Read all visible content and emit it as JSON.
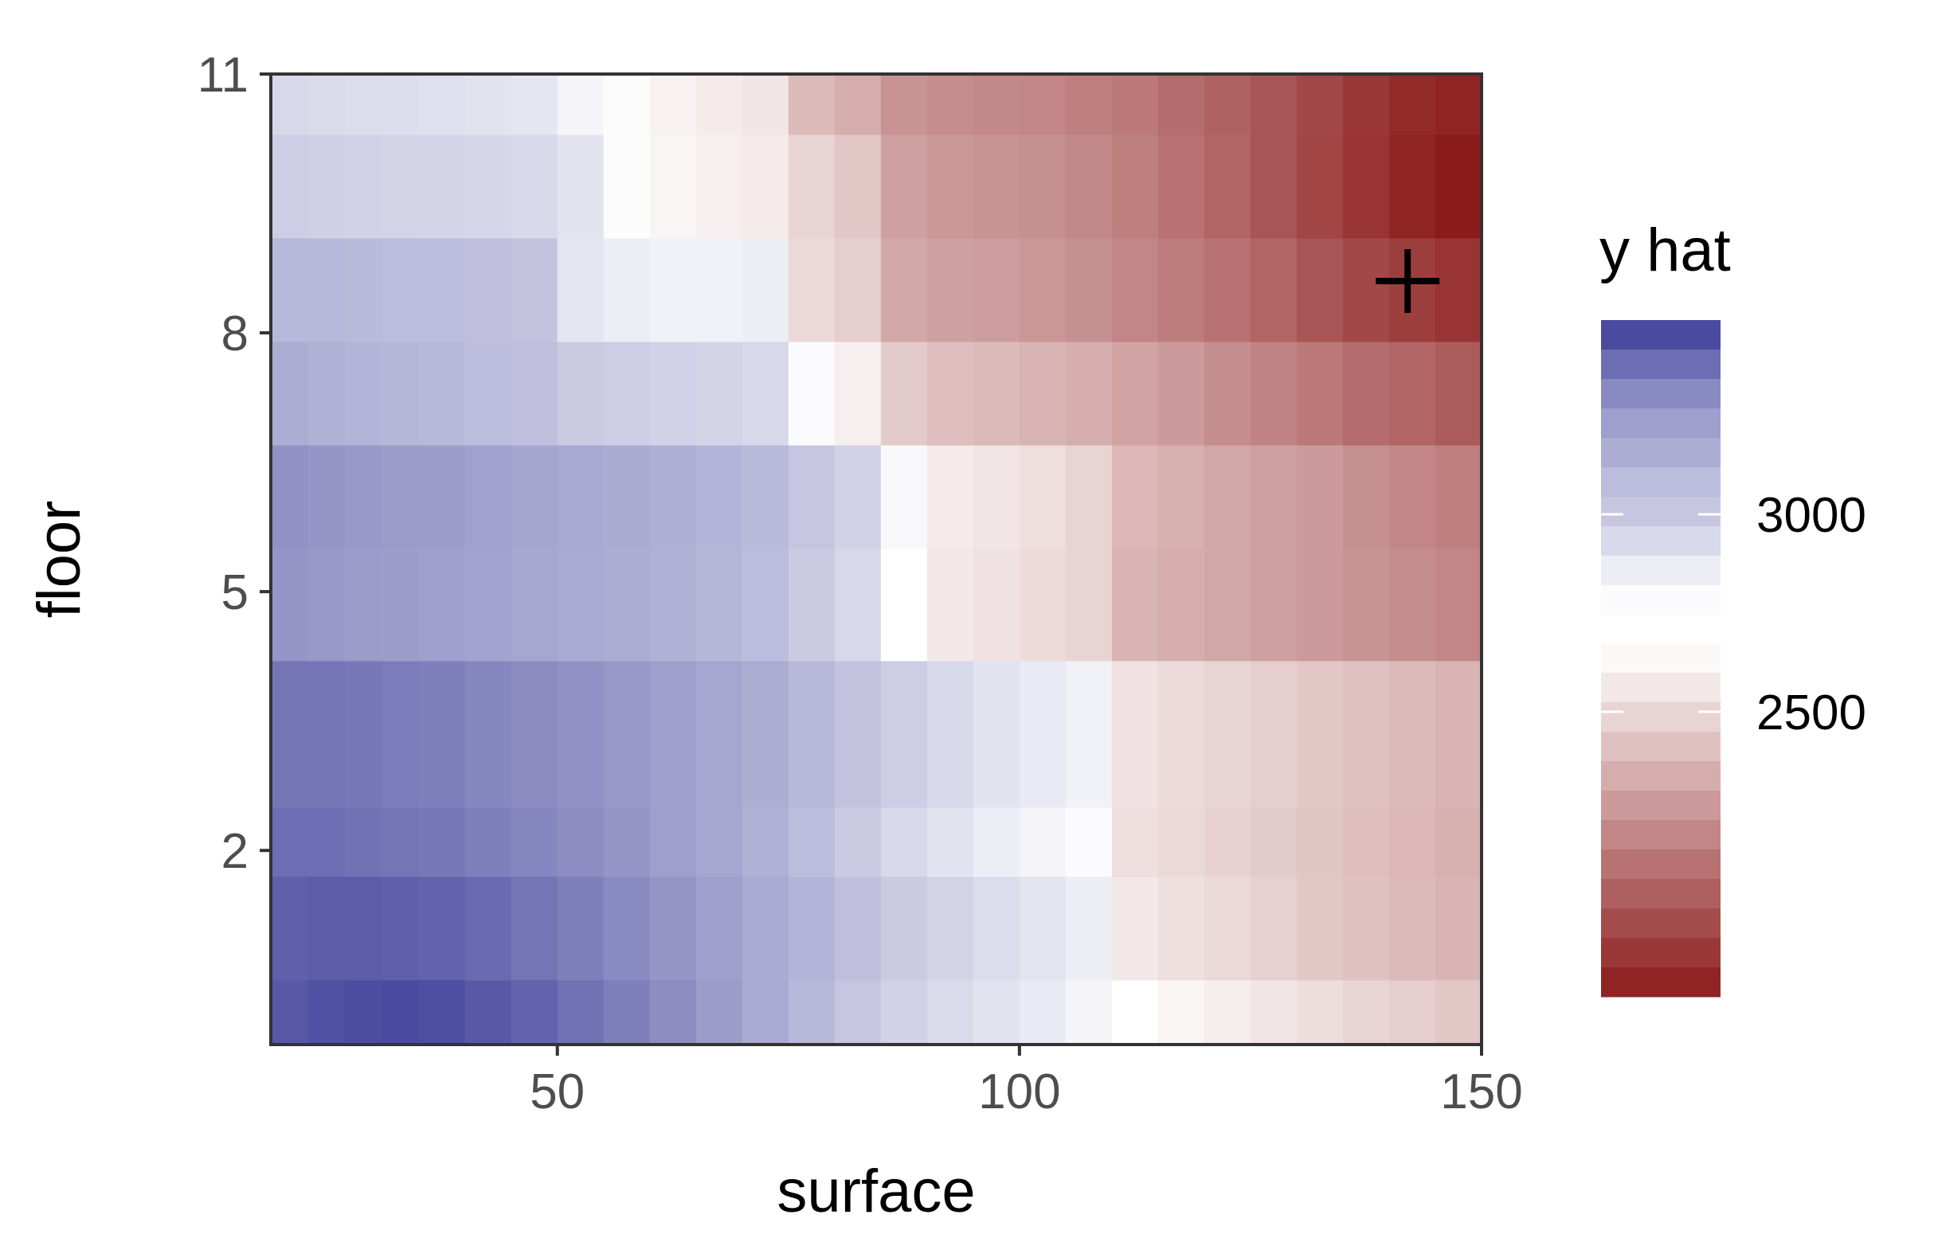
{
  "chart_data": {
    "type": "heatmap",
    "title": "",
    "xlabel": "surface",
    "ylabel": "floor",
    "xlim": [
      19,
      150
    ],
    "ylim": [
      -0.25,
      11
    ],
    "x_ticks": [
      50,
      100,
      150
    ],
    "y_ticks": [
      2,
      5,
      8,
      11
    ],
    "grid": false,
    "x_break_points": [
      19,
      23,
      27,
      31,
      35,
      40,
      45,
      50,
      55,
      60,
      65,
      70,
      75,
      80,
      85,
      90,
      95,
      100,
      105,
      110,
      115,
      120,
      125,
      130,
      135,
      140,
      145,
      150
    ],
    "y_break_points": [
      -0.25,
      0.5,
      1.7,
      2.5,
      4.2,
      5.5,
      6.7,
      7.9,
      9.1,
      10.3,
      11
    ],
    "rows": [
      {
        "y0": -0.25,
        "y1": 0.5,
        "values": [
          3320,
          3340,
          3355,
          3360,
          3350,
          3320,
          3290,
          3250,
          3210,
          3170,
          3130,
          3090,
          3050,
          3010,
          2980,
          2955,
          2930,
          2910,
          2880,
          2850,
          2820,
          2795,
          2770,
          2745,
          2720,
          2700,
          2680
        ]
      },
      {
        "y0": 0.5,
        "y1": 1.7,
        "values": [
          3300,
          3310,
          3310,
          3300,
          3290,
          3270,
          3240,
          3210,
          3180,
          3150,
          3120,
          3090,
          3060,
          3030,
          3000,
          2975,
          2950,
          2925,
          2900,
          2780,
          2755,
          2730,
          2705,
          2680,
          2660,
          2640,
          2620
        ]
      },
      {
        "y0": 1.7,
        "y1": 2.5,
        "values": [
          3260,
          3260,
          3250,
          3240,
          3230,
          3210,
          3190,
          3170,
          3150,
          3120,
          3100,
          3070,
          3040,
          3000,
          2960,
          2930,
          2900,
          2880,
          2860,
          2750,
          2730,
          2710,
          2690,
          2670,
          2650,
          2630,
          2610
        ]
      },
      {
        "y0": 2.5,
        "y1": 4.2,
        "values": [
          3240,
          3240,
          3230,
          3220,
          3210,
          3190,
          3175,
          3160,
          3140,
          3120,
          3100,
          3080,
          3050,
          3020,
          2990,
          2960,
          2930,
          2910,
          2890,
          2760,
          2740,
          2720,
          2700,
          2680,
          2660,
          2640,
          2620
        ]
      },
      {
        "y0": 4.2,
        "y1": 5.5,
        "values": [
          3150,
          3140,
          3130,
          3125,
          3120,
          3110,
          3100,
          3090,
          3080,
          3070,
          3055,
          3040,
          3000,
          2960,
          2850,
          2780,
          2760,
          2740,
          2720,
          2620,
          2600,
          2580,
          2560,
          2540,
          2520,
          2500,
          2480
        ]
      },
      {
        "y0": 5.5,
        "y1": 6.7,
        "values": [
          3160,
          3150,
          3140,
          3130,
          3125,
          3115,
          3105,
          3095,
          3085,
          3075,
          3060,
          3045,
          3010,
          2980,
          2870,
          2790,
          2770,
          2750,
          2720,
          2630,
          2610,
          2580,
          2560,
          2540,
          2510,
          2480,
          2460
        ]
      },
      {
        "y0": 6.7,
        "y1": 7.9,
        "values": [
          3080,
          3070,
          3060,
          3055,
          3050,
          3040,
          3030,
          3000,
          2990,
          2980,
          2970,
          2960,
          2860,
          2800,
          2690,
          2650,
          2640,
          2620,
          2600,
          2570,
          2540,
          2500,
          2470,
          2440,
          2400,
          2380,
          2350
        ]
      },
      {
        "y0": 7.9,
        "y1": 9.1,
        "values": [
          3050,
          3050,
          3045,
          3040,
          3035,
          3030,
          3020,
          2920,
          2900,
          2890,
          2890,
          2900,
          2730,
          2700,
          2580,
          2560,
          2550,
          2530,
          2510,
          2480,
          2450,
          2420,
          2380,
          2330,
          2290,
          2260,
          2230
        ]
      },
      {
        "y0": 9.1,
        "y1": 10.3,
        "values": [
          2990,
          2985,
          2980,
          2975,
          2970,
          2965,
          2960,
          2930,
          2840,
          2820,
          2800,
          2790,
          2720,
          2680,
          2560,
          2530,
          2520,
          2510,
          2490,
          2460,
          2420,
          2380,
          2330,
          2280,
          2230,
          2180,
          2150
        ]
      },
      {
        "y0": 10.3,
        "y1": 11,
        "values": [
          2960,
          2955,
          2950,
          2945,
          2940,
          2930,
          2920,
          2880,
          2840,
          2810,
          2790,
          2770,
          2640,
          2600,
          2520,
          2500,
          2490,
          2480,
          2460,
          2440,
          2400,
          2370,
          2330,
          2290,
          2240,
          2200,
          2180
        ]
      }
    ],
    "marker": {
      "x": 142,
      "y": 8.6,
      "symbol": "+"
    },
    "legend": {
      "title": "y hat",
      "position": "right",
      "type": "binned",
      "low_color": "#8b1a1a",
      "mid_color": "#ffffff",
      "high_color": "#4a4aa0",
      "midpoint": 2850,
      "range": [
        2150,
        3360
      ],
      "breaks": [
        3000,
        2500
      ],
      "labels": [
        "3000",
        "2500"
      ],
      "upper_bins": [
        3360,
        3260,
        3180,
        3120,
        3080,
        3040,
        3010,
        2960,
        2900,
        2860
      ],
      "lower_bins": [
        2830,
        2780,
        2720,
        2660,
        2600,
        2540,
        2480,
        2420,
        2360,
        2300,
        2240,
        2180
      ]
    }
  }
}
